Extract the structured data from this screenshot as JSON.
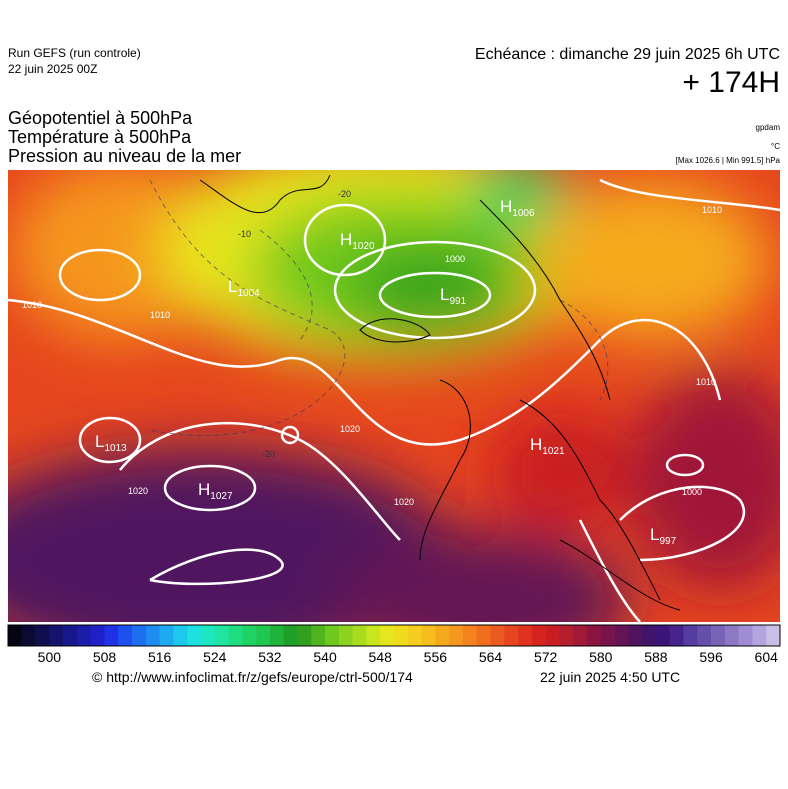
{
  "header": {
    "run": "Run GEFS (run controle)",
    "run_date": "22 juin 2025 00Z",
    "echeance": "Echéance : dimanche 29 juin 2025 6h UTC",
    "lead": "+ 174H"
  },
  "titles": [
    "Géopotentiel à 500hPa",
    "Température à 500hPa",
    "Pression au niveau de la mer"
  ],
  "units": {
    "geopotential": "gpdam",
    "temperature": "°C",
    "pressure": "[Max 1026.6 | Min 991.5] hPa"
  },
  "centers": [
    {
      "type": "L",
      "value": "1013"
    },
    {
      "type": "H",
      "value": "1027"
    },
    {
      "type": "H",
      "value": "1020"
    },
    {
      "type": "L",
      "value": "991"
    },
    {
      "type": "L",
      "value": "1004"
    },
    {
      "type": "H",
      "value": "1006"
    },
    {
      "type": "H",
      "value": "1021"
    },
    {
      "type": "L",
      "value": "997"
    }
  ],
  "contour_labels": [
    "1000",
    "1010",
    "1010",
    "1010",
    "1010",
    "1020",
    "1020",
    "1020",
    "1000",
    "-20",
    "-20",
    "-10"
  ],
  "colorbar": {
    "range": [
      494,
      606
    ],
    "ticks": [
      500,
      508,
      516,
      524,
      532,
      540,
      548,
      556,
      564,
      572,
      580,
      588,
      596,
      604
    ],
    "colors": [
      "#050514",
      "#0a0a32",
      "#0f0f50",
      "#14146e",
      "#18188c",
      "#1c1caa",
      "#2020c8",
      "#2030e6",
      "#1e50f0",
      "#1e6ef0",
      "#1e8cf0",
      "#1eaaf0",
      "#1ec8ec",
      "#1ee0e0",
      "#1ee6c0",
      "#1ee6a0",
      "#1edc82",
      "#1ed264",
      "#1ec850",
      "#1eb43c",
      "#1ea028",
      "#32a01e",
      "#50b41e",
      "#6ec81e",
      "#8cd21e",
      "#aadc1e",
      "#c8e61e",
      "#e6e61e",
      "#f0dc1e",
      "#f5cd1e",
      "#f5be1e",
      "#f5aa1e",
      "#f5961e",
      "#f5821e",
      "#f06e1e",
      "#eb5a1e",
      "#e6461e",
      "#e1321e",
      "#d7231e",
      "#c81e23",
      "#b41e2d",
      "#a01937",
      "#8c1441",
      "#78144b",
      "#641455",
      "#50145f",
      "#401469",
      "#3c1478",
      "#46238c",
      "#553ca0",
      "#6450aa",
      "#7864b4",
      "#8c78c3",
      "#a08cd2",
      "#b4a5e1",
      "#c8bee6"
    ]
  },
  "footer": {
    "url": "© http://www.infoclimat.fr/z/gefs/europe/ctrl-500/174",
    "generated": "22 juin 2025  4:50 UTC"
  }
}
